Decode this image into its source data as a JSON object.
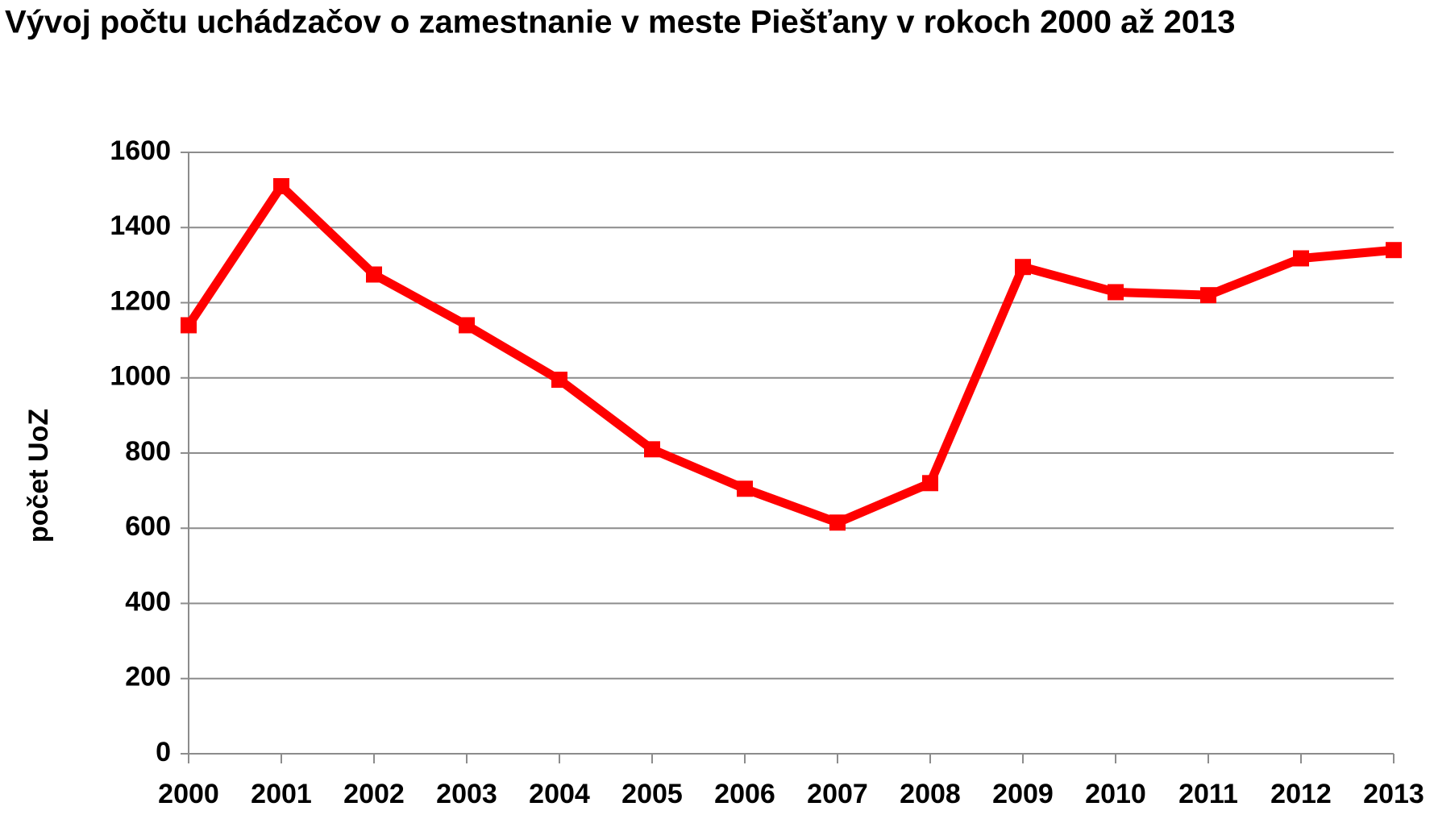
{
  "chart_data": {
    "type": "line",
    "title": "Vývoj počtu uchádzačov o zamestnanie v meste Piešťany v rokoch 2000 až 2013",
    "y_label": "počet UoZ",
    "categories": [
      "2000",
      "2001",
      "2002",
      "2003",
      "2004",
      "2005",
      "2006",
      "2007",
      "2008",
      "2009",
      "2010",
      "2011",
      "2012",
      "2013"
    ],
    "series": [
      {
        "name": "počet UoZ",
        "color": "#ff0000",
        "values": [
          1140,
          1510,
          1275,
          1140,
          995,
          810,
          705,
          615,
          720,
          1295,
          1228,
          1220,
          1318,
          1340
        ]
      }
    ],
    "ylim": [
      0,
      1600
    ],
    "yticks": [
      0,
      200,
      400,
      600,
      800,
      1000,
      1200,
      1400,
      1600
    ],
    "grid": true
  }
}
